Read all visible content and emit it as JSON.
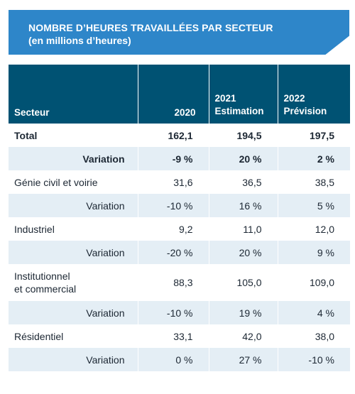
{
  "title": {
    "line1": "NOMBRE D’HEURES TRAVAILLÉES PAR SECTEUR",
    "line2": "(en millions d’heures)"
  },
  "header": {
    "col1": "Secteur",
    "col2": "2020",
    "col3_line1": "2021",
    "col3_line2": "Estimation",
    "col4_line1": "2022",
    "col4_line2": "Prévision"
  },
  "rows": [
    {
      "label": "Total",
      "v2020": "162,1",
      "v2021": "194,5",
      "v2022": "197,5"
    },
    {
      "label": "Variation",
      "v2020": "-9 %",
      "v2021": "20 %",
      "v2022": "2 %"
    },
    {
      "label": "Génie civil et voirie",
      "v2020": "31,6",
      "v2021": "36,5",
      "v2022": "38,5"
    },
    {
      "label": "Variation",
      "v2020": "-10 %",
      "v2021": "16 %",
      "v2022": "5 %"
    },
    {
      "label": "Industriel",
      "v2020": "9,2",
      "v2021": "11,0",
      "v2022": "12,0"
    },
    {
      "label": "Variation",
      "v2020": "-20 %",
      "v2021": "20 %",
      "v2022": "9 %"
    },
    {
      "label_line1": "Institutionnel",
      "label_line2": "et commercial",
      "v2020": "88,3",
      "v2021": "105,0",
      "v2022": "109,0"
    },
    {
      "label": "Variation",
      "v2020": "-10 %",
      "v2021": "19 %",
      "v2022": "4 %"
    },
    {
      "label": "Résidentiel",
      "v2020": "33,1",
      "v2021": "42,0",
      "v2022": "38,0"
    },
    {
      "label": "Variation",
      "v2020": "0 %",
      "v2021": "27 %",
      "v2022": "-10 %"
    }
  ],
  "colors": {
    "banner": "#2e86c9",
    "header": "#005273",
    "stripe": "#e4eef5",
    "text": "#1c2733"
  }
}
